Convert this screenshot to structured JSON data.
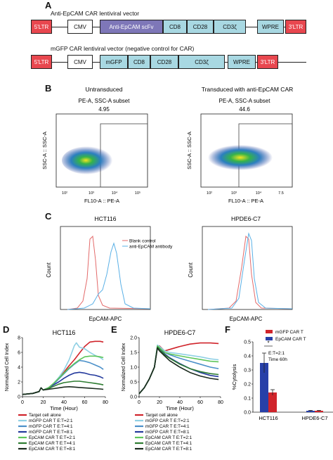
{
  "panels": {
    "A": "A",
    "B": "B",
    "C": "C",
    "D": "D",
    "E": "E",
    "F": "F"
  },
  "panelA": {
    "vector1_title": "Anti-EpCAM CAR lentiviral vector",
    "vector1": [
      "5'LTR",
      "CMV",
      "Anti-EpCAM scFv",
      "CD8",
      "CD28",
      "CD3ζ",
      "WPRE",
      "3'LTR"
    ],
    "vector2_title": "mGFP CAR lentiviral vector (negative control for CAR)",
    "vector2": [
      "5'LTR",
      "CMV",
      "mGFP",
      "CD8",
      "CD28",
      "CD3ζ",
      "WPRE",
      "3'LTR"
    ]
  },
  "panelB": {
    "left_title": "Untransduced",
    "right_title": "Transduced with anti-EpCAM CAR",
    "gate_label": "PE-A, SSC-A subset",
    "left_value": "4.95",
    "right_value": "44.6",
    "ylabel": "SSC-A :: SSC-A",
    "xlabel": "FL10-A :: PE-A",
    "xticks_left": [
      "10²",
      "10³",
      "10⁴",
      "10⁵"
    ],
    "xticks_right": [
      "10²",
      "10³",
      "10⁴",
      "7.5"
    ],
    "colors": {
      "dots_low": "#2a3d9c",
      "dots_high": "#35b34a",
      "dots_peak": "#f3e421"
    }
  },
  "panelC": {
    "left_title": "HCT116",
    "right_title": "HPDE6-C7",
    "ylabel": "Count",
    "xlabel": "EpCAM-APC",
    "legend": [
      "Blank control",
      "anti-EpCAM antibody"
    ],
    "colors": {
      "blank": "#e36a6a",
      "antibody": "#5ab0e6"
    }
  },
  "chart_data": [
    {
      "type": "line",
      "panel": "D",
      "title": "HCT116",
      "xlabel": "Time (Hour)",
      "ylabel": "Normalized Cell Index",
      "xlim": [
        0,
        80
      ],
      "ylim": [
        0,
        8
      ],
      "xticks": [
        0,
        20,
        40,
        60,
        80
      ],
      "yticks": [
        0,
        2,
        4,
        6,
        8
      ],
      "series": [
        {
          "name": "Target cell alone",
          "color": "#d0242b",
          "x": [
            0,
            10,
            16,
            18,
            20,
            25,
            30,
            35,
            40,
            45,
            50,
            55,
            60,
            65,
            70,
            75,
            78
          ],
          "y": [
            0.3,
            0.45,
            0.7,
            1.2,
            0.9,
            1.2,
            1.8,
            2.5,
            3.3,
            4.2,
            5.0,
            5.9,
            6.8,
            7.4,
            7.5,
            7.5,
            7.4
          ]
        },
        {
          "name": "mGFP CAR T E:T=2:1",
          "color": "#8fd0e4",
          "x": [
            0,
            10,
            16,
            18,
            20,
            25,
            30,
            35,
            40,
            45,
            50,
            52,
            55,
            60,
            65,
            70,
            75,
            78
          ],
          "y": [
            0.3,
            0.45,
            0.7,
            1.2,
            0.9,
            1.2,
            1.8,
            2.6,
            3.6,
            5.0,
            6.9,
            7.3,
            6.7,
            6.5,
            6.0,
            5.6,
            5.3,
            5.0
          ]
        },
        {
          "name": "mGFP CAR T E:T=4:1",
          "color": "#4b90c9",
          "x": [
            0,
            10,
            16,
            18,
            20,
            25,
            30,
            35,
            40,
            45,
            50,
            55,
            60,
            65,
            70,
            75,
            78
          ],
          "y": [
            0.3,
            0.45,
            0.7,
            1.2,
            0.9,
            1.2,
            1.7,
            2.4,
            3.1,
            3.8,
            4.4,
            4.9,
            4.8,
            4.6,
            4.3,
            4.0,
            3.7
          ]
        },
        {
          "name": "mGFP CAR T E:T=8:1",
          "color": "#23399c",
          "x": [
            0,
            10,
            16,
            18,
            20,
            25,
            30,
            35,
            40,
            45,
            50,
            55,
            60,
            65,
            70,
            75,
            78
          ],
          "y": [
            0.3,
            0.45,
            0.7,
            1.2,
            0.9,
            1.2,
            1.6,
            2.0,
            2.5,
            2.9,
            3.2,
            3.3,
            3.2,
            3.0,
            2.9,
            2.7,
            2.5
          ]
        },
        {
          "name": "EpCAM CAR T E:T=2:1",
          "color": "#5ec65a",
          "x": [
            0,
            10,
            16,
            18,
            20,
            25,
            30,
            35,
            40,
            45,
            50,
            55,
            60,
            65,
            70,
            75,
            78
          ],
          "y": [
            0.3,
            0.45,
            0.7,
            1.2,
            0.9,
            1.2,
            1.8,
            2.5,
            3.2,
            3.9,
            4.5,
            5.0,
            5.4,
            5.5,
            5.5,
            5.4,
            5.3
          ]
        },
        {
          "name": "EpCAM CAR T E:T=4:1",
          "color": "#2e7d32",
          "x": [
            0,
            10,
            16,
            18,
            20,
            25,
            30,
            35,
            40,
            45,
            50,
            55,
            60,
            65,
            70,
            75,
            78
          ],
          "y": [
            0.3,
            0.45,
            0.7,
            1.2,
            0.9,
            1.1,
            1.4,
            1.7,
            1.9,
            2.0,
            2.1,
            2.1,
            2.0,
            1.9,
            1.8,
            1.7,
            1.6
          ]
        },
        {
          "name": "EpCAM CAR T E:T=8:1",
          "color": "#1b2a1e",
          "x": [
            0,
            10,
            16,
            18,
            20,
            25,
            30,
            35,
            40,
            45,
            50,
            55,
            60,
            65,
            70,
            75,
            78
          ],
          "y": [
            0.3,
            0.45,
            0.7,
            1.2,
            0.9,
            1.0,
            1.1,
            1.2,
            1.3,
            1.35,
            1.3,
            1.25,
            1.2,
            1.15,
            1.1,
            1.05,
            1.0
          ]
        }
      ]
    },
    {
      "type": "line",
      "panel": "E",
      "title": "HPDE6-C7",
      "xlabel": "Time (Hour)",
      "ylabel": "Normalized Cell Index",
      "xlim": [
        0,
        80
      ],
      "ylim": [
        0,
        2.0
      ],
      "xticks": [
        0,
        20,
        40,
        60,
        80
      ],
      "yticks": [
        0.0,
        0.5,
        1.0,
        1.5,
        2.0
      ],
      "series": [
        {
          "name": "Target cell alone",
          "color": "#d0242b",
          "x": [
            0,
            5,
            10,
            15,
            18,
            20,
            25,
            30,
            40,
            50,
            60,
            70,
            78
          ],
          "y": [
            0.1,
            0.3,
            0.6,
            1.0,
            1.7,
            1.72,
            1.55,
            1.6,
            1.7,
            1.78,
            1.82,
            1.82,
            1.8
          ]
        },
        {
          "name": "mGFP CAR T E:T=2:1",
          "color": "#8fd0e4",
          "x": [
            0,
            5,
            10,
            15,
            18,
            20,
            25,
            30,
            40,
            50,
            60,
            70,
            78
          ],
          "y": [
            0.1,
            0.3,
            0.6,
            1.0,
            1.75,
            1.7,
            1.55,
            1.5,
            1.45,
            1.4,
            1.35,
            1.28,
            1.25
          ]
        },
        {
          "name": "mGFP CAR T E:T=4:1",
          "color": "#4b90c9",
          "x": [
            0,
            5,
            10,
            15,
            18,
            20,
            25,
            30,
            40,
            50,
            60,
            70,
            78
          ],
          "y": [
            0.1,
            0.3,
            0.6,
            1.0,
            1.7,
            1.65,
            1.5,
            1.42,
            1.3,
            1.2,
            1.1,
            1.0,
            0.95
          ]
        },
        {
          "name": "mGFP CAR T E:T=8:1",
          "color": "#23399c",
          "x": [
            0,
            5,
            10,
            15,
            18,
            20,
            25,
            30,
            40,
            50,
            60,
            70,
            78
          ],
          "y": [
            0.1,
            0.3,
            0.6,
            1.0,
            1.7,
            1.62,
            1.45,
            1.32,
            1.12,
            0.95,
            0.82,
            0.72,
            0.68
          ]
        },
        {
          "name": "EpCAM CAR T E:T=2:1",
          "color": "#5ec65a",
          "x": [
            0,
            5,
            10,
            15,
            18,
            20,
            25,
            30,
            40,
            50,
            60,
            70,
            78
          ],
          "y": [
            0.1,
            0.3,
            0.6,
            1.0,
            1.72,
            1.66,
            1.5,
            1.45,
            1.38,
            1.32,
            1.26,
            1.2,
            1.18
          ]
        },
        {
          "name": "EpCAM CAR T E:T=4:1",
          "color": "#2e7d32",
          "x": [
            0,
            5,
            10,
            15,
            18,
            20,
            25,
            30,
            40,
            50,
            60,
            70,
            78
          ],
          "y": [
            0.1,
            0.3,
            0.6,
            1.0,
            1.68,
            1.6,
            1.42,
            1.3,
            1.1,
            0.95,
            0.85,
            0.78,
            0.75
          ]
        },
        {
          "name": "EpCAM CAR T E:T=8:1",
          "color": "#1b2a1e",
          "x": [
            0,
            5,
            10,
            15,
            18,
            20,
            25,
            30,
            40,
            50,
            60,
            70,
            78
          ],
          "y": [
            0.1,
            0.3,
            0.6,
            1.0,
            1.65,
            1.55,
            1.38,
            1.22,
            1.0,
            0.82,
            0.7,
            0.62,
            0.58
          ]
        }
      ]
    },
    {
      "type": "bar",
      "panel": "F",
      "ylabel": "%Cytolysis",
      "categories": [
        "HCT116",
        "HPDE6-C7"
      ],
      "ylim": [
        0,
        0.5
      ],
      "yticks": [
        0.0,
        0.1,
        0.2,
        0.3,
        0.4,
        0.5
      ],
      "series": [
        {
          "name": "mGFP CAR T",
          "color": "#d0242b",
          "values": [
            0.14,
            0.01
          ],
          "errors": [
            0.02,
            0.003
          ]
        },
        {
          "name": "EpCAM CAR T",
          "color": "#2740a8",
          "values": [
            0.35,
            0.01
          ],
          "errors": [
            0.07,
            0.003
          ]
        }
      ],
      "annotation": "*",
      "condition_line1": "E:T=2:1",
      "condition_line2": "Time 60h"
    }
  ]
}
